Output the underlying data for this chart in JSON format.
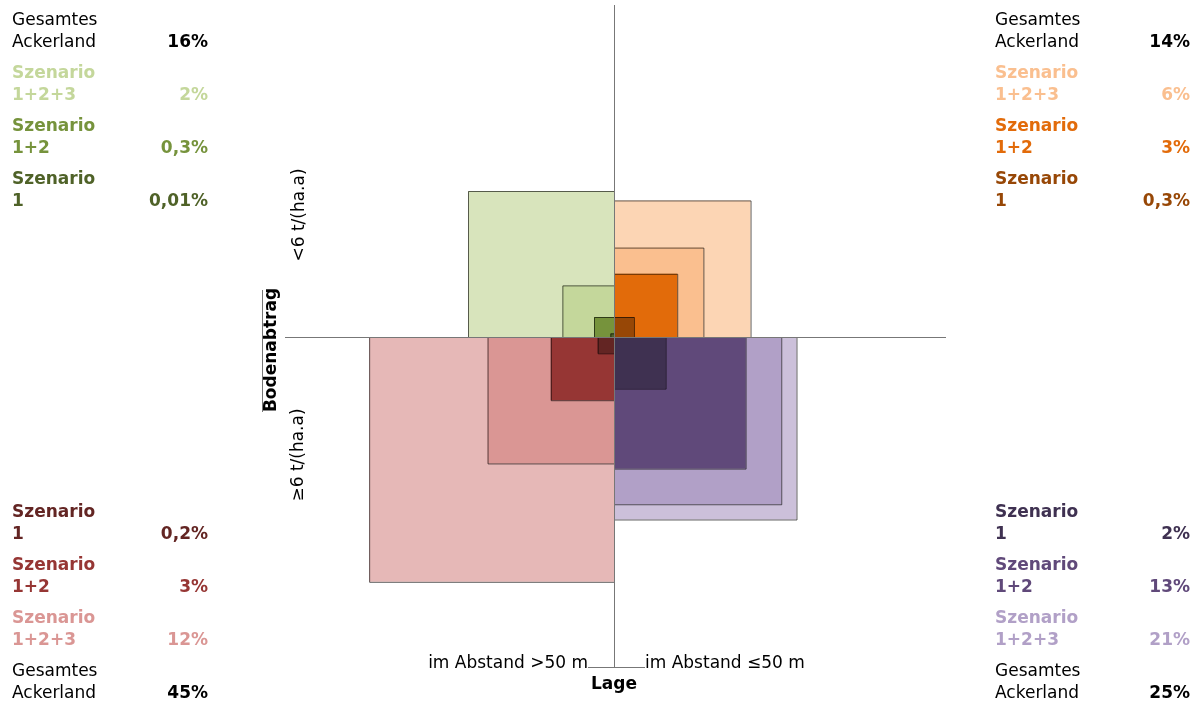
{
  "chart_data": {
    "type": "other",
    "xlabel": "Lage",
    "ylabel": "Bodenabtrag",
    "categories": [
      "im Abstand >50 m",
      "im Abstand ≤50 m"
    ],
    "y_categories": [
      "<6 t/(ha.a)",
      "≥6 t/(ha.a)"
    ],
    "series": [
      {
        "name": "Gesamtes Ackerland",
        "values": [
          16,
          14
        ],
        "value_labels": [
          "16%",
          "14%"
        ],
        "colors": [
          "#d8e4bc",
          "#fcd5b4"
        ]
      },
      {
        "name": "Szenario 1+2+3",
        "values": [
          2,
          6
        ],
        "value_labels": [
          "2%",
          "6%"
        ],
        "colors": [
          "#c4d79b",
          "#fabf8f"
        ]
      },
      {
        "name": "Szenario 1+2",
        "values": [
          0.3,
          3
        ],
        "value_labels": [
          "0,3%",
          "3%"
        ],
        "colors": [
          "#76933c",
          "#e26b0a"
        ]
      },
      {
        "name": "Szenario 1",
        "values": [
          0.01,
          0.3
        ],
        "value_labels": [
          "0,01%",
          "0,3%"
        ],
        "colors": [
          "#4f6228",
          "#974706"
        ]
      },
      {
        "name": "Gesamtes Ackerland",
        "values": [
          45,
          25
        ],
        "value_labels": [
          "45%",
          "25%"
        ],
        "colors": [
          "#e6b8b7",
          "#ccc0da"
        ]
      },
      {
        "name": "Szenario 1+2+3",
        "values": [
          12,
          21
        ],
        "value_labels": [
          "12%",
          "21%"
        ],
        "colors": [
          "#da9694",
          "#b1a0c7"
        ]
      },
      {
        "name": "Szenario 1+2",
        "values": [
          3,
          13
        ],
        "value_labels": [
          "3%",
          "13%"
        ],
        "colors": [
          "#963634",
          "#60497a"
        ]
      },
      {
        "name": "Szenario 1",
        "values": [
          0.2,
          2
        ],
        "value_labels": [
          "0,2%",
          "2%"
        ],
        "colors": [
          "#632523",
          "#3f3151"
        ]
      }
    ]
  }
}
